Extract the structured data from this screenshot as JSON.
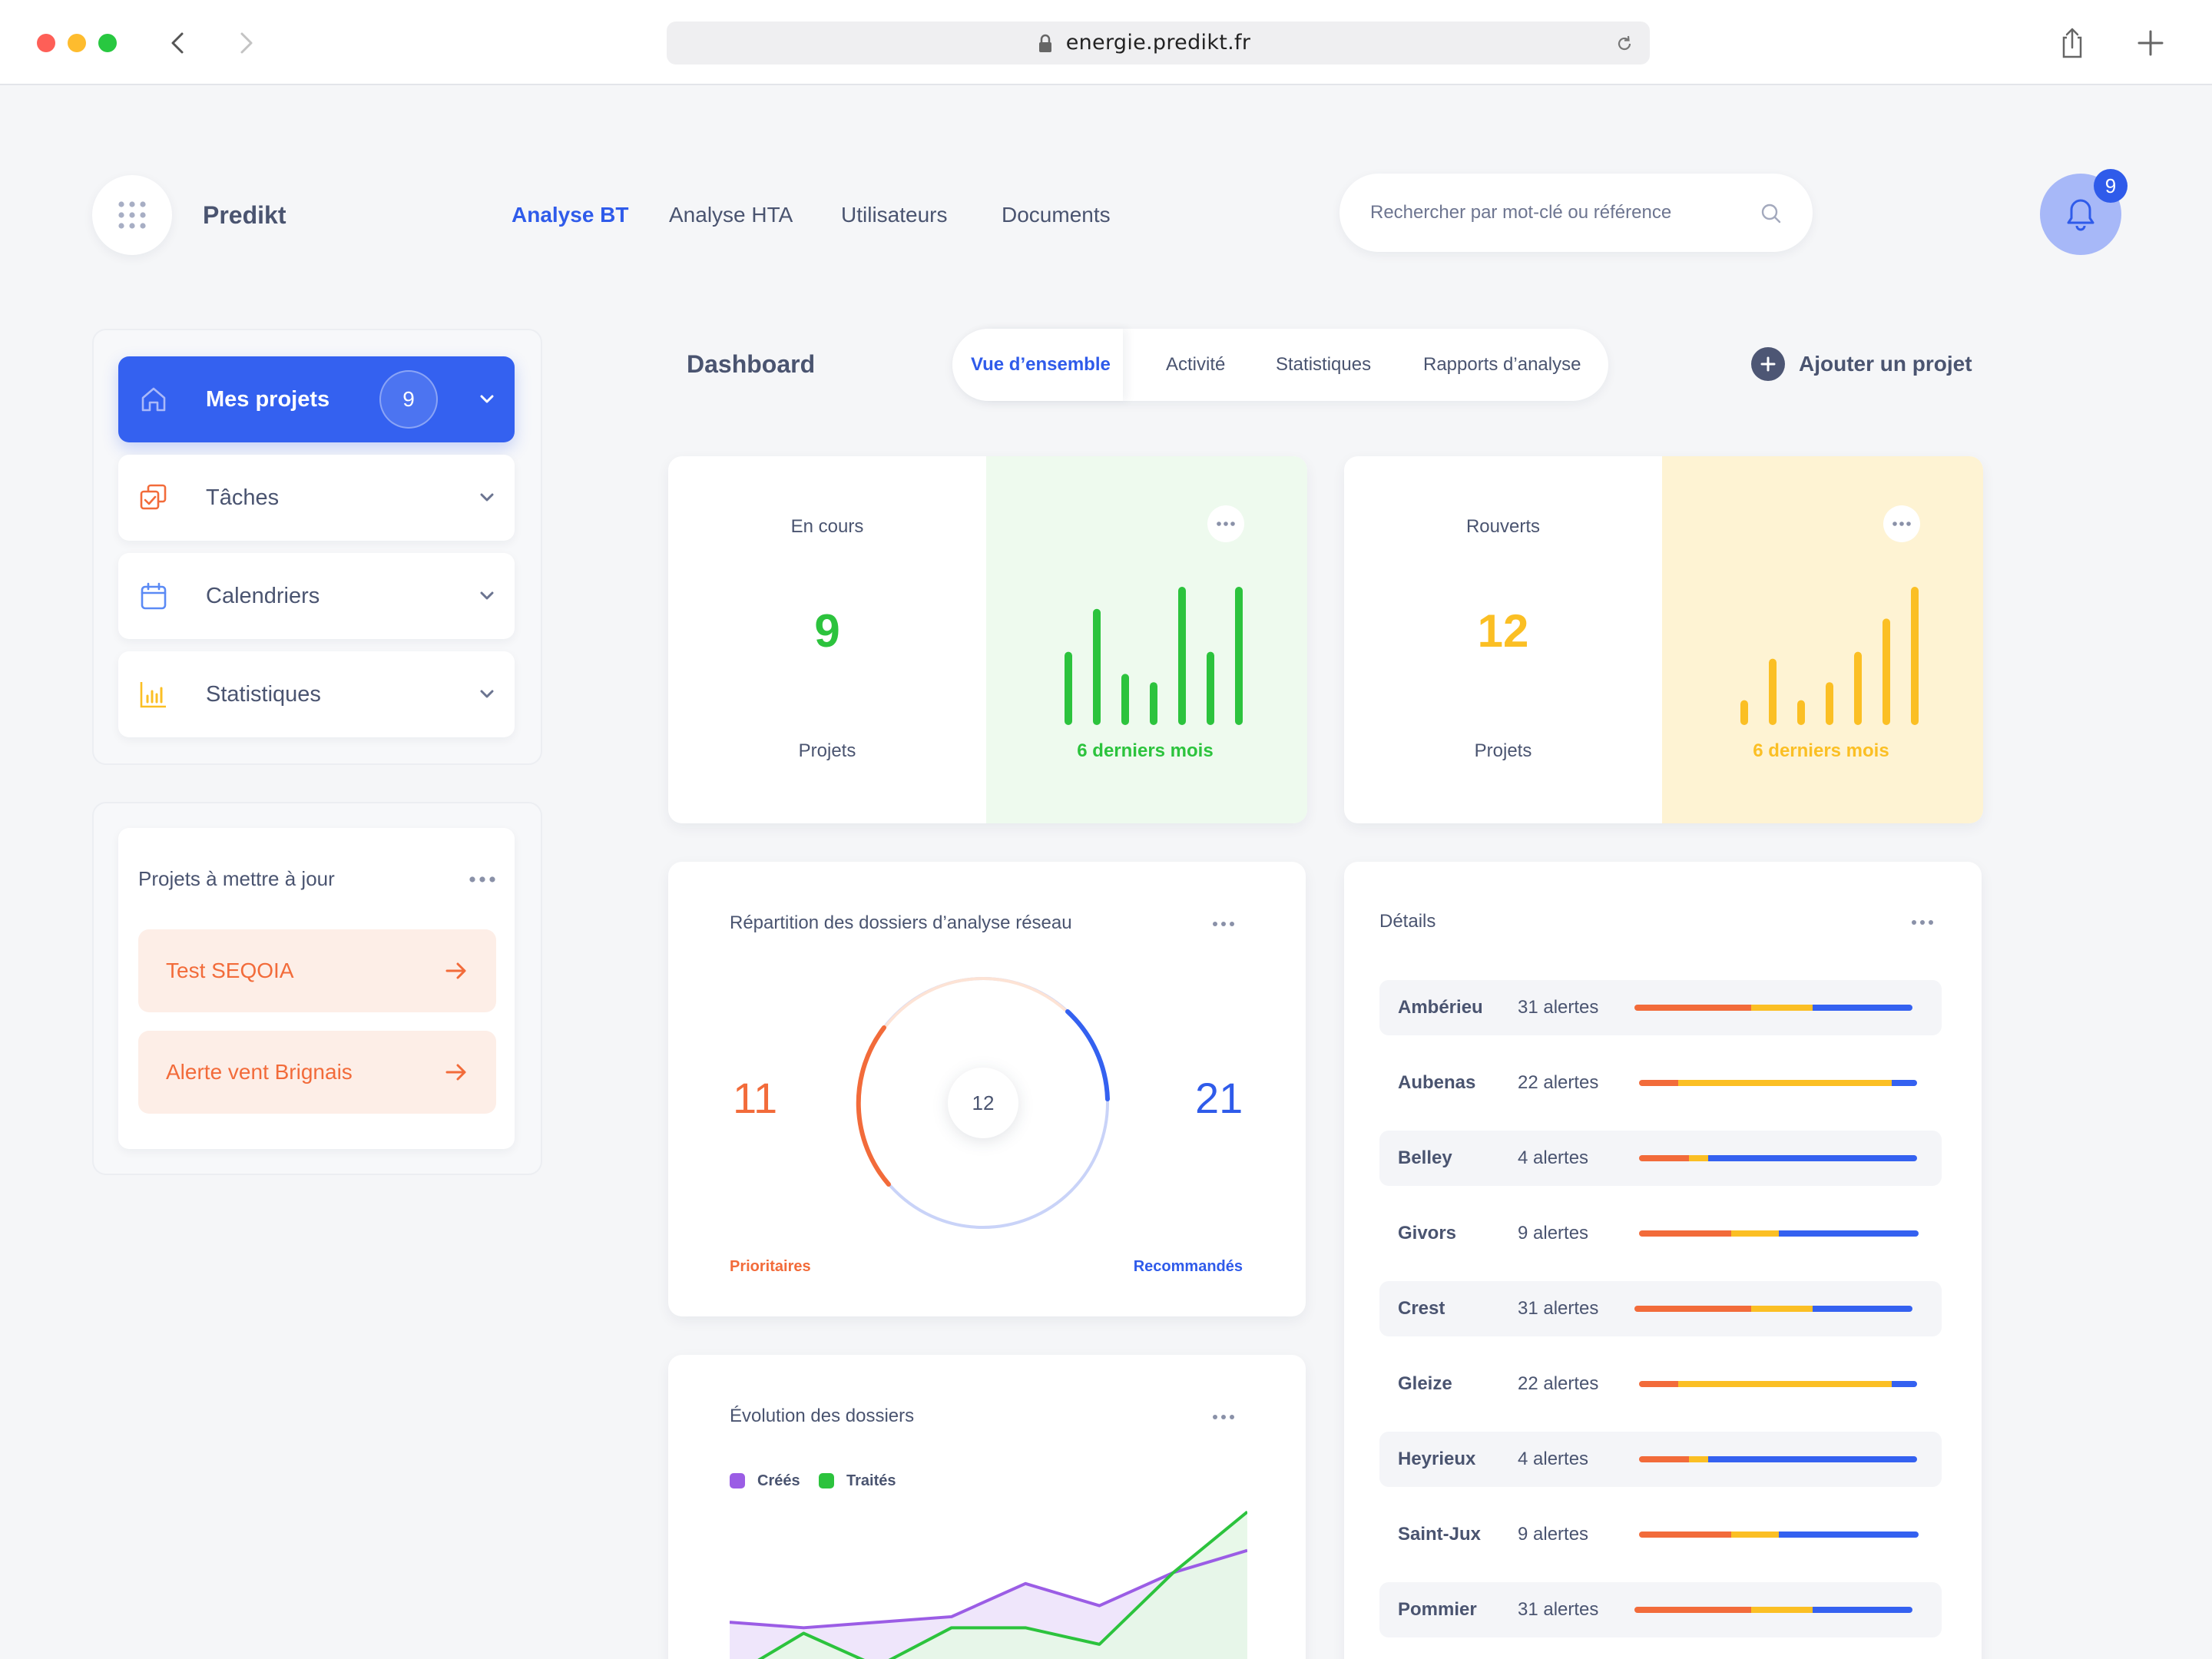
{
  "browser": {
    "url": "energie.predikt.fr"
  },
  "app": {
    "brand": "Predikt",
    "nav": [
      "Analyse BT",
      "Analyse HTA",
      "Utilisateurs",
      "Documents"
    ],
    "nav_active": "Analyse BT",
    "search_placeholder": "Rechercher par mot-clé ou référence",
    "notification_count": "9"
  },
  "sidebar": {
    "items": [
      {
        "label": "Mes projets",
        "icon": "home-icon",
        "count": "9",
        "active": true
      },
      {
        "label": "Tâches",
        "icon": "tasks-icon"
      },
      {
        "label": "Calendriers",
        "icon": "calendar-icon"
      },
      {
        "label": "Statistiques",
        "icon": "bar-chart-icon"
      }
    ],
    "updates": {
      "title": "Projets à mettre à jour",
      "items": [
        "Test SEQOIA",
        "Alerte vent Brignais"
      ]
    }
  },
  "dashboard": {
    "title": "Dashboard",
    "tabs": [
      "Vue d’ensemble",
      "Activité",
      "Statistiques",
      "Rapports d’analyse"
    ],
    "add_project": "Ajouter un projet"
  },
  "cards": {
    "en_cours": {
      "label": "En cours",
      "value": "9",
      "unit": "Projets",
      "caption": "6 derniers mois",
      "color": "#2cc33d",
      "bars": [
        0.53,
        0.84,
        0.37,
        0.31,
        1.0,
        0.53,
        1.0
      ]
    },
    "rouverts": {
      "label": "Rouverts",
      "value": "12",
      "unit": "Projets",
      "caption": "6 derniers mois",
      "color": "#fbbf24",
      "bars": [
        0.18,
        0.48,
        0.18,
        0.31,
        0.53,
        0.77,
        1.0
      ]
    }
  },
  "repartition": {
    "title": "Répartition des dossiers d’analyse réseau",
    "left_value": "11",
    "center_value": "12",
    "right_value": "21",
    "left_label": "Prioritaires",
    "right_label": "Recommandés",
    "left_color": "#f26b3a",
    "right_color": "#3461f0"
  },
  "evolution": {
    "title": "Évolution des dossiers",
    "legend": [
      {
        "name": "Créés",
        "color": "#9b5de5"
      },
      {
        "name": "Traités",
        "color": "#2cc33d"
      }
    ]
  },
  "details": {
    "title": "Détails",
    "rows": [
      {
        "city": "Ambérieu",
        "alerts": "31 alertes",
        "split": [
          0.42,
          0.22,
          0.36
        ]
      },
      {
        "city": "Aubenas",
        "alerts": "22 alertes",
        "split": [
          0.14,
          0.77,
          0.09
        ]
      },
      {
        "city": "Belley",
        "alerts": "4 alertes",
        "split": [
          0.18,
          0.07,
          0.75
        ]
      },
      {
        "city": "Givors",
        "alerts": "9 alertes",
        "split": [
          0.33,
          0.17,
          0.5
        ]
      },
      {
        "city": "Crest",
        "alerts": "31 alertes",
        "split": [
          0.42,
          0.22,
          0.36
        ]
      },
      {
        "city": "Gleize",
        "alerts": "22 alertes",
        "split": [
          0.14,
          0.77,
          0.09
        ]
      },
      {
        "city": "Heyrieux",
        "alerts": "4 alertes",
        "split": [
          0.18,
          0.07,
          0.75
        ]
      },
      {
        "city": "Saint-Jux",
        "alerts": "9 alertes",
        "split": [
          0.33,
          0.17,
          0.5
        ]
      },
      {
        "city": "Pommier",
        "alerts": "31 alertes",
        "split": [
          0.42,
          0.22,
          0.36
        ]
      }
    ]
  },
  "chart_data": {
    "type": "area",
    "title": "Évolution des dossiers",
    "series": [
      {
        "name": "Créés",
        "values": [
          10,
          9,
          10,
          11,
          17,
          13,
          19,
          23
        ]
      },
      {
        "name": "Traités",
        "values": [
          0,
          8,
          2,
          9,
          9,
          6,
          19,
          30
        ]
      }
    ]
  }
}
